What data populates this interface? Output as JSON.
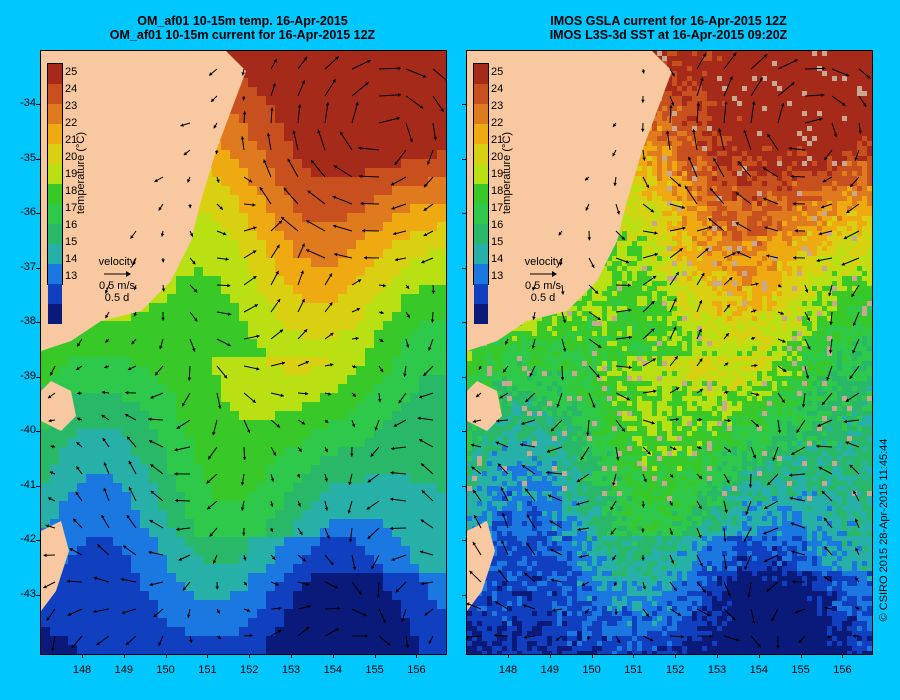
{
  "panels": [
    {
      "title_line1": "OM_af01 10-15m temp. 16-Apr-2015",
      "title_line2": "OM_af01 10-15m current for 16-Apr-2015 12Z",
      "source": "model"
    },
    {
      "title_line1": "IMOS GSLA current for 16-Apr-2015 12Z",
      "title_line2": "IMOS L3S-3d SST at 16-Apr-2015 09:20Z",
      "source": "observation"
    }
  ],
  "colorbar": {
    "labels": [
      "25",
      "24",
      "23",
      "22",
      "21",
      "20",
      "19",
      "18",
      "17",
      "16",
      "15",
      "14",
      "13"
    ],
    "colors": [
      "#a52a1a",
      "#c8501e",
      "#e07a1e",
      "#eeaa10",
      "#d8d010",
      "#b8e012",
      "#38c828",
      "#2ec84a",
      "#28b868",
      "#26b0a8",
      "#1a78e0",
      "#1040c0",
      "#0a1a7a"
    ],
    "title": "temperature (°C)"
  },
  "velocity_legend": {
    "label": "velocity",
    "speed": "0.5 m/s",
    "duration": "0.5 d"
  },
  "axes": {
    "y_ticks": [
      "-34",
      "-35",
      "-36",
      "-37",
      "-38",
      "-39",
      "-40",
      "-41",
      "-42",
      "-43"
    ],
    "x_ticks": [
      "148",
      "149",
      "150",
      "151",
      "152",
      "153",
      "154",
      "155",
      "156"
    ]
  },
  "credit": "© CSIRO 2015   28-Apr-2015 11:45:44",
  "colors": {
    "background": "#00c8ff",
    "land": "#f8c8a0",
    "no_data": "#c8a890"
  }
}
